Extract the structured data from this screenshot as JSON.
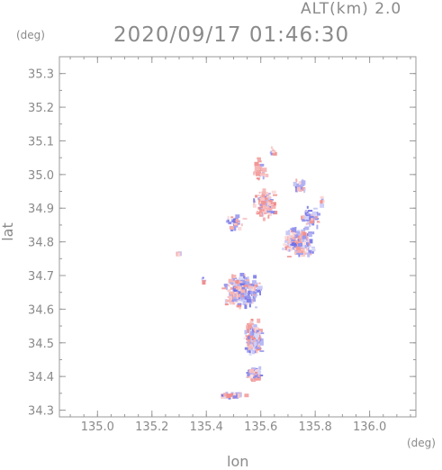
{
  "header": {
    "altitude_label": "ALT(km) 2.0",
    "timestamp": "2020/09/17 01:46:30"
  },
  "chart_data": {
    "type": "heatmap",
    "title": "2020/09/17 01:46:30",
    "xlabel": "lon",
    "ylabel": "lat",
    "x_unit": "(deg)",
    "y_unit": "(deg)",
    "xlim": [
      134.86,
      136.17
    ],
    "ylim": [
      34.28,
      35.35
    ],
    "x_ticks": [
      135.0,
      135.2,
      135.4,
      135.6,
      135.8,
      136.0
    ],
    "x_tick_labels": [
      "135.0",
      "135.2",
      "135.4",
      "135.6",
      "135.8",
      "136.0"
    ],
    "y_ticks": [
      34.3,
      34.4,
      34.5,
      34.6,
      34.7,
      34.8,
      34.9,
      35.0,
      35.1,
      35.2,
      35.3
    ],
    "y_tick_labels": [
      "34.3",
      "34.4",
      "34.5",
      "34.6",
      "34.7",
      "34.8",
      "34.9",
      "35.0",
      "35.1",
      "35.2",
      "35.3"
    ],
    "grid": false,
    "colors": {
      "positive": "#f08a8a",
      "negative": "#7a7ae8",
      "axis": "#999999"
    },
    "echo_regions": [
      {
        "lon": 135.61,
        "lat": 34.92,
        "dlon": 0.045,
        "dlat": 0.05,
        "count": 150,
        "bias": 0.85
      },
      {
        "lon": 135.59,
        "lat": 35.02,
        "dlon": 0.03,
        "dlat": 0.04,
        "count": 40,
        "bias": 0.85
      },
      {
        "lon": 135.64,
        "lat": 35.07,
        "dlon": 0.015,
        "dlat": 0.02,
        "count": 10,
        "bias": 0.8
      },
      {
        "lon": 135.73,
        "lat": 34.8,
        "dlon": 0.07,
        "dlat": 0.06,
        "count": 180,
        "bias": 0.5
      },
      {
        "lon": 135.78,
        "lat": 34.88,
        "dlon": 0.04,
        "dlat": 0.035,
        "count": 60,
        "bias": 0.3
      },
      {
        "lon": 135.74,
        "lat": 34.97,
        "dlon": 0.03,
        "dlat": 0.025,
        "count": 25,
        "bias": 0.6
      },
      {
        "lon": 135.5,
        "lat": 34.86,
        "dlon": 0.04,
        "dlat": 0.03,
        "count": 30,
        "bias": 0.5
      },
      {
        "lon": 135.53,
        "lat": 34.66,
        "dlon": 0.08,
        "dlat": 0.06,
        "count": 260,
        "bias": 0.5
      },
      {
        "lon": 135.57,
        "lat": 34.52,
        "dlon": 0.04,
        "dlat": 0.06,
        "count": 170,
        "bias": 0.4
      },
      {
        "lon": 135.57,
        "lat": 34.41,
        "dlon": 0.035,
        "dlat": 0.025,
        "count": 80,
        "bias": 0.35
      },
      {
        "lon": 135.49,
        "lat": 34.35,
        "dlon": 0.06,
        "dlat": 0.008,
        "count": 35,
        "bias": 0.5
      },
      {
        "lon": 135.82,
        "lat": 34.93,
        "dlon": 0.01,
        "dlat": 0.02,
        "count": 6,
        "bias": 0.8
      },
      {
        "lon": 135.29,
        "lat": 34.77,
        "dlon": 0.01,
        "dlat": 0.01,
        "count": 5,
        "bias": 0.6
      },
      {
        "lon": 135.38,
        "lat": 34.69,
        "dlon": 0.008,
        "dlat": 0.01,
        "count": 4,
        "bias": 0.4
      }
    ]
  }
}
